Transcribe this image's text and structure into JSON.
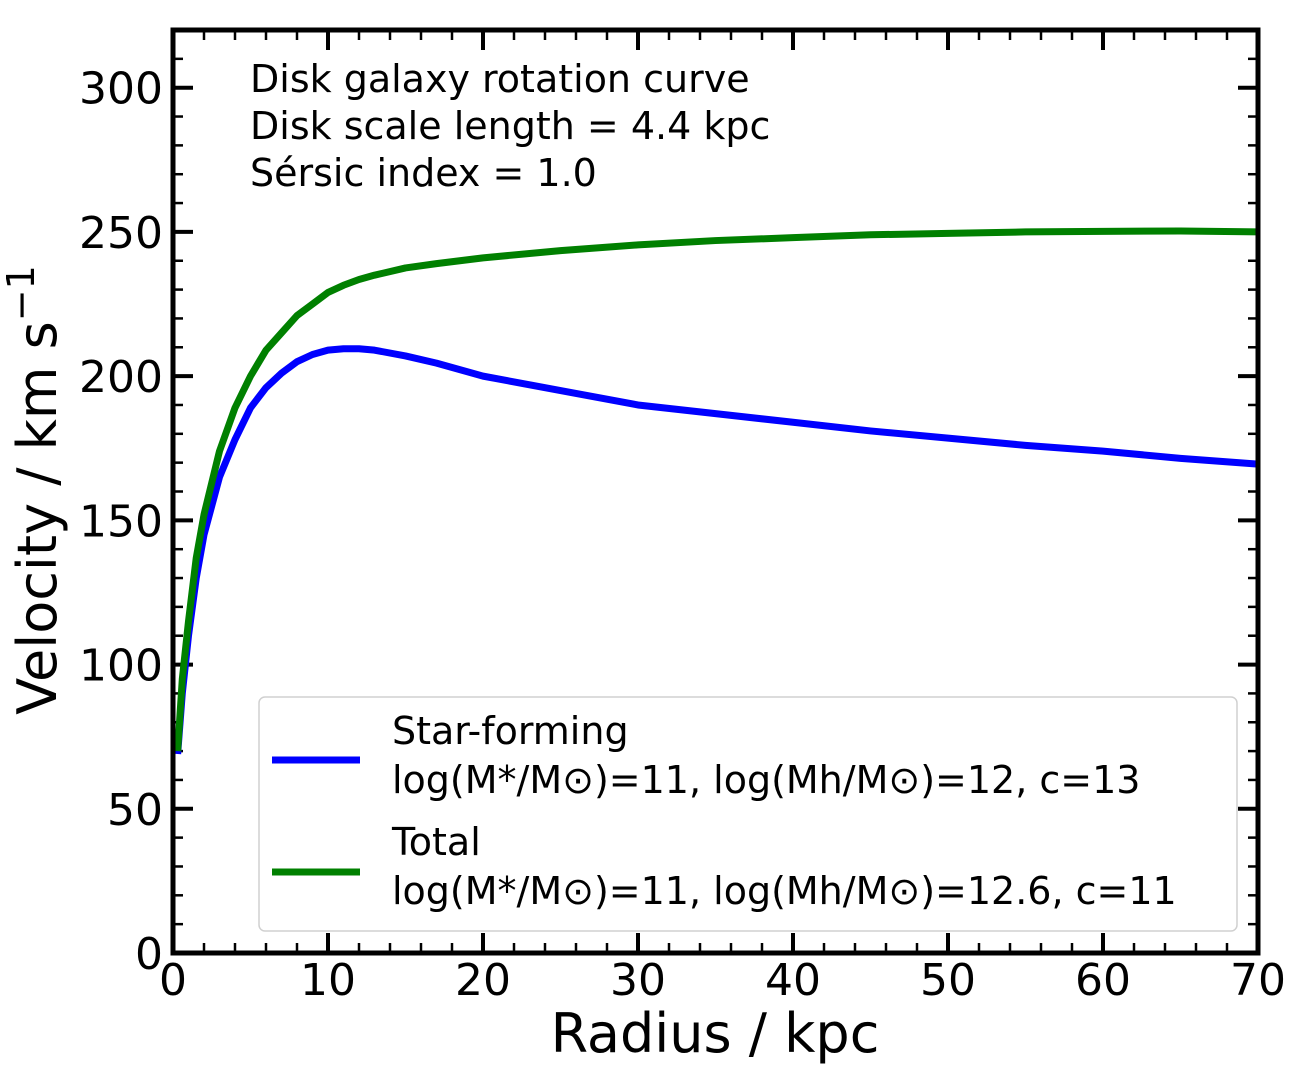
{
  "chart_data": {
    "type": "line",
    "title": "",
    "xlabel": "Radius / kpc",
    "ylabel_main": "Velocity / km s",
    "ylabel_sup": "−1",
    "xlim": [
      0,
      70
    ],
    "ylim": [
      0,
      320
    ],
    "xticks": [
      0,
      10,
      20,
      30,
      40,
      50,
      60,
      70
    ],
    "xtick_labels": [
      "0",
      "10",
      "20",
      "30",
      "40",
      "50",
      "60",
      "70"
    ],
    "yticks": [
      0,
      50,
      100,
      150,
      200,
      250,
      300
    ],
    "ytick_labels": [
      "0",
      "50",
      "100",
      "150",
      "200",
      "250",
      "300"
    ],
    "annotations": [
      "Disk galaxy rotation curve",
      "Disk scale length = 4.4 kpc",
      "Sérsic index = 1.0"
    ],
    "legend_position": "lower-right",
    "series": [
      {
        "name": "Star-forming",
        "label_line1": "Star-forming",
        "label_line2": "log(M*/M⊙)=11, log(Mh/M⊙)=12, c=13",
        "color": "#0000ff",
        "x": [
          0.3,
          0.6,
          1,
          1.5,
          2,
          3,
          4,
          5,
          6,
          7,
          8,
          9,
          10,
          11,
          12,
          13,
          15,
          17,
          20,
          25,
          30,
          35,
          40,
          45,
          50,
          55,
          60,
          65,
          70
        ],
        "y": [
          69,
          90,
          110,
          130,
          145,
          165,
          178,
          189,
          196,
          201,
          205,
          207.5,
          209,
          209.5,
          209.5,
          209,
          207,
          204.5,
          200,
          195,
          190,
          187,
          184,
          181,
          178.5,
          176,
          174,
          171.5,
          169.5
        ]
      },
      {
        "name": "Total",
        "label_line1": "Total",
        "label_line2": "log(M*/M⊙)=11, log(Mh/M⊙)=12.6, c=11",
        "color": "#008000",
        "x": [
          0.3,
          0.6,
          1,
          1.5,
          2,
          3,
          4,
          5,
          6,
          7,
          8,
          9,
          10,
          11,
          12,
          13,
          15,
          17,
          20,
          25,
          30,
          35,
          40,
          45,
          50,
          55,
          60,
          65,
          70
        ],
        "y": [
          70,
          95,
          115,
          137,
          152,
          174,
          189,
          200,
          209,
          215,
          221,
          225,
          229,
          231.5,
          233.5,
          235,
          237.5,
          239,
          241,
          243.5,
          245.5,
          247,
          248,
          249,
          249.5,
          250,
          250.2,
          250.3,
          250
        ]
      }
    ]
  }
}
